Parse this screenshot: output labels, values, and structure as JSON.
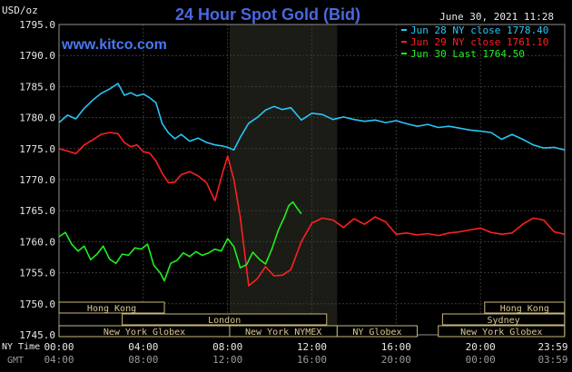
{
  "chart_data": {
    "type": "line",
    "title": "24 Hour Spot Gold (Bid)",
    "watermark": "www.kitco.com",
    "timestamp": "June 30, 2021 11:28",
    "ylabel": "USD/oz",
    "ylim": [
      1745,
      1795
    ],
    "yticks": [
      "1795.0",
      "1790.0",
      "1785.0",
      "1780.0",
      "1775.0",
      "1770.0",
      "1765.0",
      "1760.0",
      "1755.0",
      "1750.0",
      "1745.0"
    ],
    "x_axis_labels": {
      "row1_name": "NY Time",
      "row2_name": "GMT",
      "ny": [
        "00:00",
        "04:00",
        "08:00",
        "12:00",
        "16:00",
        "20:00",
        "23:59"
      ],
      "gmt": [
        "04:00",
        "08:00",
        "12:00",
        "16:00",
        "20:00",
        "00:00",
        "03:59"
      ]
    },
    "grid": true,
    "legend_position": "top-right",
    "legend": [
      {
        "label": "Jun 28 NY close 1778.40",
        "color": "#29c5f6"
      },
      {
        "label": "Jun 29 NY close 1761.10",
        "color": "#ff2020"
      },
      {
        "label": "Jun 30 Last 1764.50",
        "color": "#22ee22"
      }
    ],
    "highlight_band_hours": [
      8.1,
      13.2
    ],
    "sessions": [
      {
        "label": "Hong Kong",
        "row": 0,
        "start_h": 0,
        "end_h": 5.0
      },
      {
        "label": "London",
        "row": 1,
        "start_h": 3.0,
        "end_h": 12.7
      },
      {
        "label": "New York Globex",
        "row": 2,
        "start_h": 0,
        "end_h": 8.1
      },
      {
        "label": "New York NYMEX",
        "row": 2,
        "start_h": 8.1,
        "end_h": 13.2
      },
      {
        "label": "NY Globex",
        "row": 2,
        "start_h": 13.2,
        "end_h": 17.0
      },
      {
        "label": "Hong Kong",
        "row": 0,
        "start_h": 20.2,
        "end_h": 23.99
      },
      {
        "label": "Sydney",
        "row": 1,
        "start_h": 18.2,
        "end_h": 23.99
      },
      {
        "label": "New York Globex",
        "row": 2,
        "start_h": 18.0,
        "end_h": 23.99
      }
    ],
    "series": [
      {
        "name": "Jun 28 NY close 1778.40",
        "color": "#29c5f6",
        "x": [
          0,
          0.4,
          0.8,
          1.2,
          1.6,
          2.0,
          2.4,
          2.8,
          3.1,
          3.4,
          3.7,
          4.0,
          4.3,
          4.6,
          4.9,
          5.2,
          5.5,
          5.8,
          6.2,
          6.6,
          7.0,
          7.4,
          7.8,
          8.0,
          8.3,
          8.6,
          9.0,
          9.4,
          9.8,
          10.2,
          10.6,
          11.0,
          11.5,
          12.0,
          12.5,
          13.0,
          13.5,
          14.0,
          14.5,
          15.0,
          15.5,
          16.0,
          16.5,
          17.0,
          17.5,
          18.0,
          18.5,
          19.0,
          19.5,
          20.0,
          20.5,
          21.0,
          21.5,
          22.0,
          22.5,
          23.0,
          23.5,
          23.99
        ],
        "values": [
          1779.2,
          1780.4,
          1779.8,
          1781.5,
          1782.8,
          1783.9,
          1784.6,
          1785.5,
          1783.6,
          1784.0,
          1783.5,
          1783.8,
          1783.2,
          1782.4,
          1779.0,
          1777.5,
          1776.6,
          1777.3,
          1776.2,
          1776.7,
          1776.0,
          1775.6,
          1775.4,
          1775.2,
          1774.8,
          1776.8,
          1779.1,
          1780.0,
          1781.2,
          1781.8,
          1781.3,
          1781.6,
          1779.6,
          1780.7,
          1780.5,
          1779.7,
          1780.1,
          1779.7,
          1779.4,
          1779.6,
          1779.2,
          1779.5,
          1779.0,
          1778.6,
          1778.9,
          1778.4,
          1778.6,
          1778.3,
          1778.0,
          1777.8,
          1777.6,
          1776.5,
          1777.3,
          1776.5,
          1775.6,
          1775.1,
          1775.2,
          1774.8
        ]
      },
      {
        "name": "Jun 29 NY close 1761.10",
        "color": "#ff2020",
        "x": [
          0,
          0.4,
          0.8,
          1.2,
          1.6,
          2.0,
          2.4,
          2.8,
          3.1,
          3.4,
          3.7,
          4.0,
          4.3,
          4.6,
          4.9,
          5.2,
          5.5,
          5.8,
          6.2,
          6.6,
          7.0,
          7.4,
          7.8,
          8.0,
          8.3,
          8.6,
          9.0,
          9.4,
          9.8,
          10.2,
          10.6,
          11.0,
          11.5,
          12.0,
          12.5,
          13.0,
          13.5,
          14.0,
          14.5,
          15.0,
          15.5,
          16.0,
          16.5,
          17.0,
          17.5,
          18.0,
          18.5,
          19.0,
          19.5,
          20.0,
          20.5,
          21.0,
          21.5,
          22.0,
          22.5,
          23.0,
          23.5,
          23.99
        ],
        "values": [
          1775.0,
          1774.6,
          1774.2,
          1775.6,
          1776.4,
          1777.3,
          1777.6,
          1777.4,
          1776.0,
          1775.3,
          1775.6,
          1774.5,
          1774.3,
          1773.0,
          1771.0,
          1769.5,
          1769.6,
          1770.8,
          1771.3,
          1770.6,
          1769.5,
          1766.6,
          1771.5,
          1773.8,
          1770.0,
          1764.0,
          1752.9,
          1754.0,
          1756.0,
          1754.5,
          1754.6,
          1755.5,
          1760.0,
          1763.0,
          1763.8,
          1763.5,
          1762.3,
          1763.7,
          1762.8,
          1764.0,
          1763.2,
          1761.2,
          1761.4,
          1761.1,
          1761.3,
          1761.0,
          1761.4,
          1761.6,
          1761.9,
          1762.2,
          1761.5,
          1761.2,
          1761.4,
          1762.8,
          1763.8,
          1763.5,
          1761.6,
          1761.2
        ]
      },
      {
        "name": "Jun 30 Last 1764.50",
        "color": "#22ee22",
        "x": [
          0,
          0.3,
          0.6,
          0.9,
          1.2,
          1.5,
          1.8,
          2.1,
          2.4,
          2.7,
          3.0,
          3.3,
          3.6,
          3.9,
          4.2,
          4.5,
          4.8,
          5.0,
          5.3,
          5.6,
          5.9,
          6.2,
          6.5,
          6.8,
          7.1,
          7.4,
          7.7,
          8.0,
          8.3,
          8.6,
          8.9,
          9.2,
          9.5,
          9.8,
          10.1,
          10.4,
          10.7,
          10.9,
          11.1,
          11.3,
          11.5
        ],
        "values": [
          1760.8,
          1761.5,
          1759.6,
          1758.5,
          1759.3,
          1757.1,
          1758.0,
          1759.3,
          1757.2,
          1756.5,
          1758.0,
          1757.8,
          1759.0,
          1758.8,
          1759.6,
          1756.2,
          1755.0,
          1753.7,
          1756.5,
          1757.0,
          1758.2,
          1757.6,
          1758.4,
          1757.8,
          1758.2,
          1758.8,
          1758.5,
          1760.5,
          1759.2,
          1755.8,
          1756.3,
          1758.3,
          1757.2,
          1756.4,
          1758.8,
          1761.8,
          1764.0,
          1765.8,
          1766.4,
          1765.4,
          1764.5
        ]
      }
    ]
  }
}
